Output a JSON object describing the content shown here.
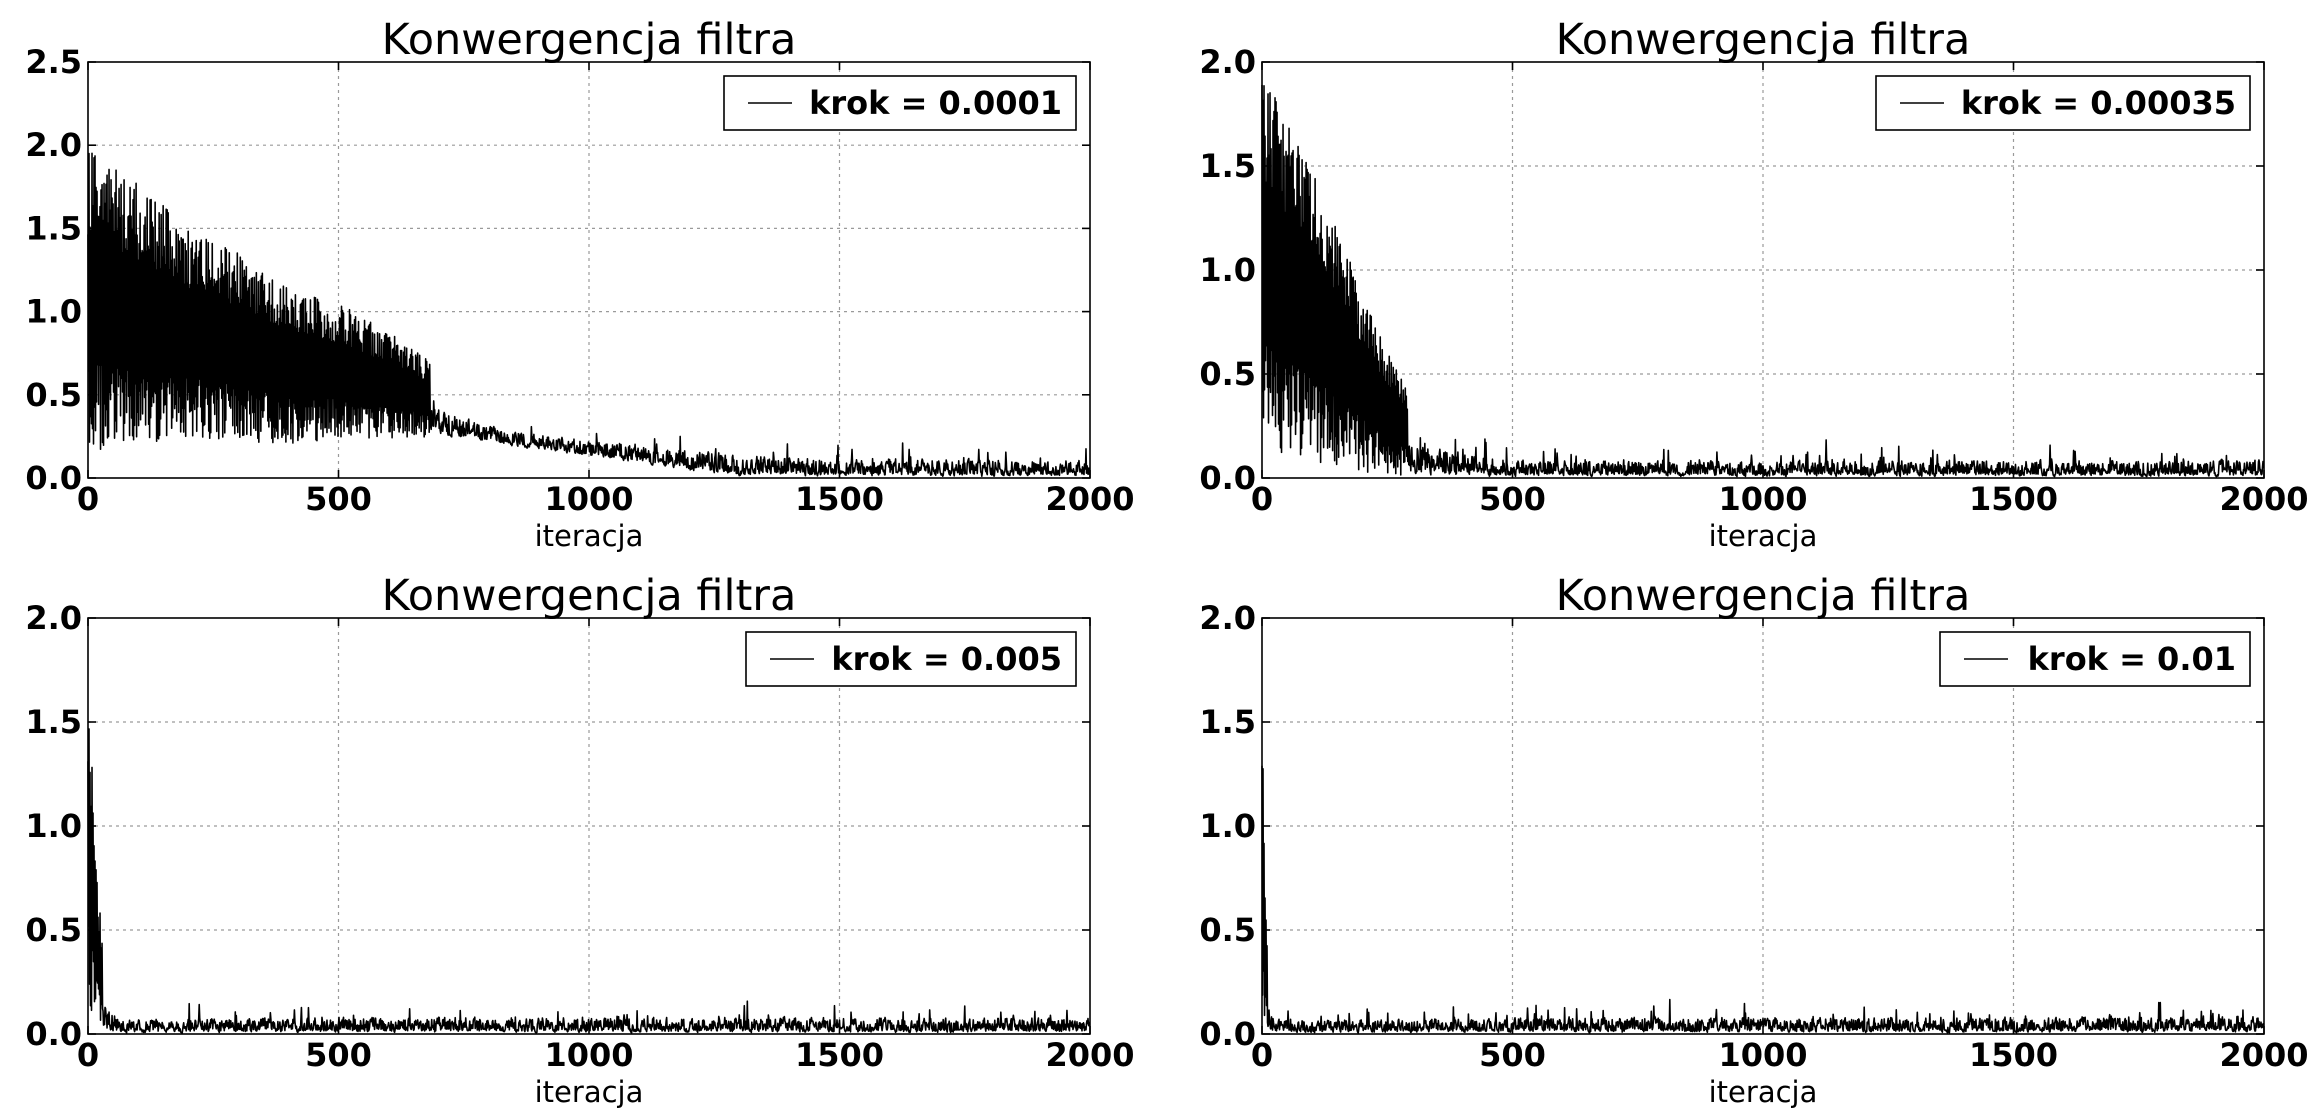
{
  "figure": {
    "background": "#ffffff",
    "line_color": "#000000",
    "grid": true,
    "grid_style": "dotted"
  },
  "chart_data": [
    {
      "type": "line",
      "title": "Konwergencja filtra",
      "xlabel": "iteracja",
      "ylabel": "",
      "xlim": [
        0,
        2000
      ],
      "ylim": [
        0,
        2.5
      ],
      "xticks": [
        "0",
        "500",
        "1000",
        "1500",
        "2000"
      ],
      "yticks": [
        "0.0",
        "0.5",
        "1.0",
        "1.5",
        "2.0",
        "2.5"
      ],
      "legend_position": "top-right",
      "series": [
        {
          "name": "krok = 0.0001",
          "n_points": 2000,
          "envelope_x": [
            0,
            100,
            200,
            300,
            400,
            500,
            600,
            700,
            800,
            900,
            1000,
            1100,
            1200,
            1300,
            1400,
            1500,
            1600,
            1700,
            1800,
            1900,
            2000
          ],
          "envelope_high": [
            1.97,
            1.78,
            1.5,
            1.35,
            1.18,
            1.05,
            0.88,
            0.66,
            0.47,
            0.42,
            0.39,
            0.37,
            0.35,
            0.34,
            0.32,
            0.3,
            0.29,
            0.28,
            0.27,
            0.26,
            0.26
          ],
          "envelope_low": [
            0.15,
            0.2,
            0.25,
            0.22,
            0.2,
            0.24,
            0.24,
            0.25,
            0.2,
            0.16,
            0.12,
            0.08,
            0.03,
            0.0,
            0.0,
            0.0,
            0.0,
            0.0,
            0.0,
            0.0,
            0.0
          ]
        }
      ]
    },
    {
      "type": "line",
      "title": "Konwergencja filtra",
      "xlabel": "iteracja",
      "ylabel": "",
      "xlim": [
        0,
        2000
      ],
      "ylim": [
        0,
        2.0
      ],
      "xticks": [
        "0",
        "500",
        "1000",
        "1500",
        "2000"
      ],
      "yticks": [
        "0.0",
        "0.5",
        "1.0",
        "1.5",
        "2.0"
      ],
      "legend_position": "top-right",
      "series": [
        {
          "name": "krok = 0.00035",
          "n_points": 2000,
          "envelope_x": [
            0,
            50,
            100,
            150,
            200,
            250,
            300,
            350,
            400,
            500,
            600,
            800,
            1000,
            1200,
            1400,
            1600,
            1800,
            2000
          ],
          "envelope_high": [
            1.95,
            1.75,
            1.5,
            1.2,
            0.9,
            0.6,
            0.42,
            0.35,
            0.3,
            0.22,
            0.2,
            0.2,
            0.2,
            0.21,
            0.21,
            0.21,
            0.22,
            0.22
          ],
          "envelope_low": [
            0.1,
            0.1,
            0.08,
            0.05,
            0.03,
            0.02,
            0.0,
            0.0,
            0.0,
            0.0,
            0.0,
            0.0,
            0.0,
            0.0,
            0.0,
            0.0,
            0.0,
            0.0
          ]
        }
      ]
    },
    {
      "type": "line",
      "title": "Konwergencja filtra",
      "xlabel": "iteracja",
      "ylabel": "",
      "xlim": [
        0,
        2000
      ],
      "ylim": [
        0,
        2.0
      ],
      "xticks": [
        "0",
        "500",
        "1000",
        "1500",
        "2000"
      ],
      "yticks": [
        "0.0",
        "0.5",
        "1.0",
        "1.5",
        "2.0"
      ],
      "legend_position": "top-right",
      "series": [
        {
          "name": "krok = 0.005",
          "n_points": 2000,
          "envelope_x": [
            0,
            5,
            10,
            20,
            30,
            40,
            60,
            100,
            500,
            1000,
            1500,
            2000
          ],
          "envelope_high": [
            1.65,
            1.5,
            1.15,
            0.75,
            0.45,
            0.3,
            0.2,
            0.17,
            0.2,
            0.2,
            0.2,
            0.2
          ],
          "envelope_low": [
            0.2,
            0.1,
            0.05,
            0.02,
            0.0,
            0.0,
            0.0,
            0.0,
            0.0,
            0.0,
            0.0,
            0.0
          ]
        }
      ]
    },
    {
      "type": "line",
      "title": "Konwergencja filtra",
      "xlabel": "iteracja",
      "ylabel": "",
      "xlim": [
        0,
        2000
      ],
      "ylim": [
        0,
        2.0
      ],
      "xticks": [
        "0",
        "500",
        "1000",
        "1500",
        "2000"
      ],
      "yticks": [
        "0.0",
        "0.5",
        "1.0",
        "1.5",
        "2.0"
      ],
      "legend_position": "top-right",
      "series": [
        {
          "name": "krok = 0.01",
          "n_points": 2000,
          "envelope_x": [
            0,
            3,
            6,
            10,
            15,
            25,
            40,
            100,
            500,
            1000,
            1500,
            2000
          ],
          "envelope_high": [
            1.3,
            1.35,
            0.9,
            0.5,
            0.3,
            0.2,
            0.17,
            0.16,
            0.2,
            0.2,
            0.2,
            0.2
          ],
          "envelope_low": [
            0.2,
            0.1,
            0.05,
            0.02,
            0.0,
            0.0,
            0.0,
            0.0,
            0.0,
            0.0,
            0.0,
            0.0
          ]
        }
      ]
    }
  ]
}
